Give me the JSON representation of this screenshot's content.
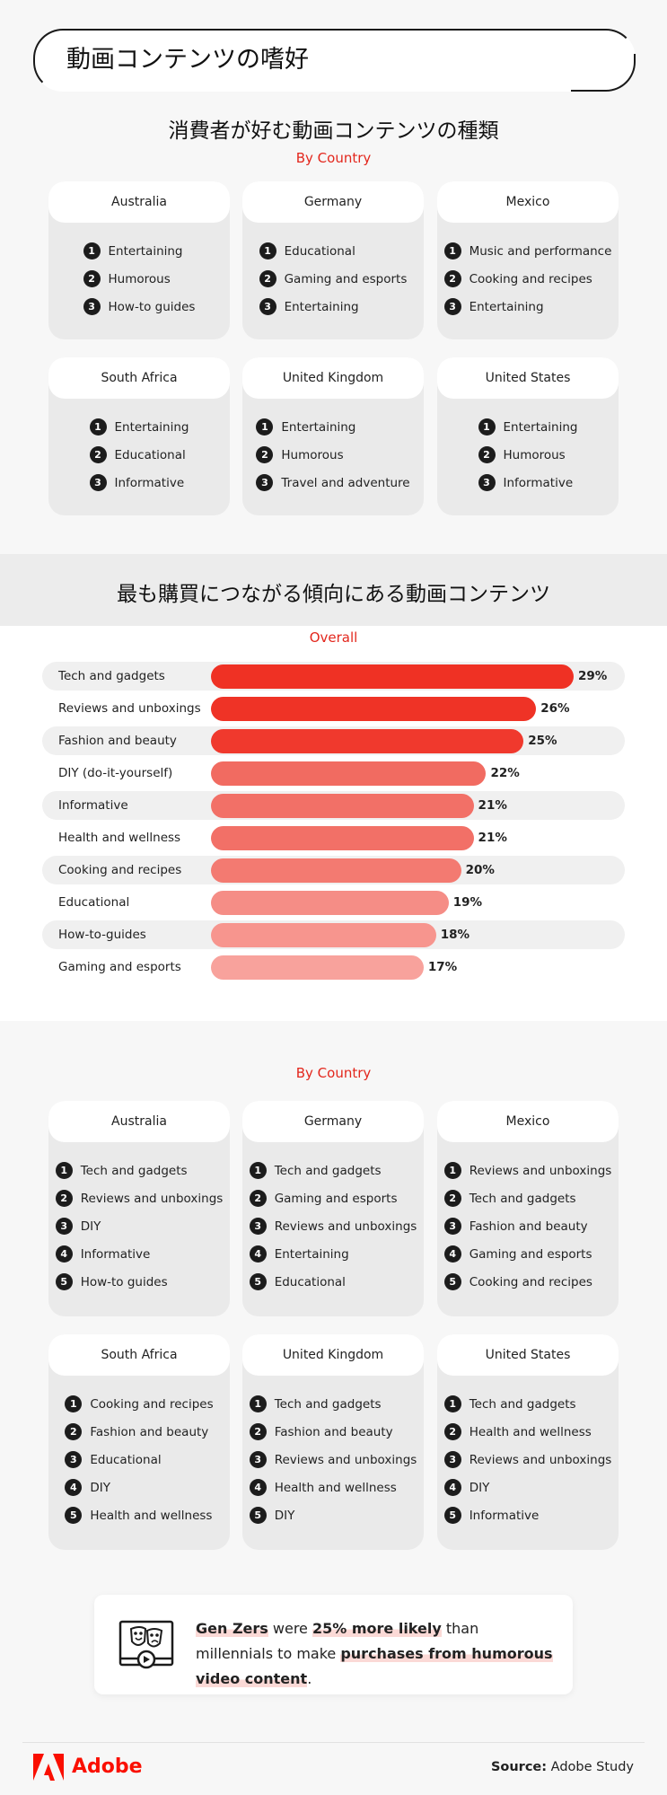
{
  "page_title": "動画コンテンツの嗜好",
  "section1": {
    "title": "消費者が好む動画コンテンツの種類",
    "subtitle": "By Country",
    "countries": [
      {
        "name": "Australia",
        "items": [
          "Entertaining",
          "Humorous",
          "How-to guides"
        ]
      },
      {
        "name": "Germany",
        "items": [
          "Educational",
          "Gaming and esports",
          "Entertaining"
        ]
      },
      {
        "name": "Mexico",
        "items": [
          "Music and performance",
          "Cooking and recipes",
          "Entertaining"
        ]
      },
      {
        "name": "South Africa",
        "items": [
          "Entertaining",
          "Educational",
          "Informative"
        ]
      },
      {
        "name": "United Kingdom",
        "items": [
          "Entertaining",
          "Humorous",
          "Travel and adventure"
        ]
      },
      {
        "name": "United States",
        "items": [
          "Entertaining",
          "Humorous",
          "Informative"
        ]
      }
    ]
  },
  "section2": {
    "title": "最も購買につながる傾向にある動画コンテンツ",
    "subtitle": "Overall"
  },
  "chart_data": {
    "type": "bar",
    "orientation": "horizontal",
    "title": "最も購買につながる傾向にある動画コンテンツ",
    "subtitle": "Overall",
    "categories": [
      "Tech and gadgets",
      "Reviews and unboxings",
      "Fashion and beauty",
      "DIY (do-it-yourself)",
      "Informative",
      "Health and wellness",
      "Cooking and recipes",
      "Educational",
      "How-to-guides",
      "Gaming and esports"
    ],
    "values": [
      29,
      26,
      25,
      22,
      21,
      21,
      20,
      19,
      18,
      17
    ],
    "value_labels": [
      "29%",
      "26%",
      "25%",
      "22%",
      "21%",
      "21%",
      "20%",
      "19%",
      "18%",
      "17%"
    ],
    "colors": [
      "#ef3124",
      "#ef3326",
      "#f0392d",
      "#f16b61",
      "#f27067",
      "#f27067",
      "#f37a71",
      "#f58d86",
      "#f7958e",
      "#f8a29c"
    ],
    "xlim": [
      0,
      29
    ]
  },
  "section3": {
    "subtitle": "By Country",
    "countries": [
      {
        "name": "Australia",
        "items": [
          "Tech and gadgets",
          "Reviews and unboxings",
          "DIY",
          "Informative",
          "How-to guides"
        ]
      },
      {
        "name": "Germany",
        "items": [
          "Tech and gadgets",
          "Gaming and esports",
          "Reviews and unboxings",
          "Entertaining",
          "Educational"
        ]
      },
      {
        "name": "Mexico",
        "items": [
          "Reviews and unboxings",
          "Tech and gadgets",
          "Fashion and beauty",
          "Gaming and esports",
          "Cooking and recipes"
        ]
      },
      {
        "name": "South Africa",
        "items": [
          "Cooking and recipes",
          "Fashion and beauty",
          "Educational",
          "DIY",
          "Health and wellness"
        ]
      },
      {
        "name": "United Kingdom",
        "items": [
          "Tech and gadgets",
          "Fashion and beauty",
          "Reviews and unboxings",
          "Health and wellness",
          "DIY"
        ]
      },
      {
        "name": "United States",
        "items": [
          "Tech and gadgets",
          "Health and wellness",
          "Reviews and unboxings",
          "DIY",
          "Informative"
        ]
      }
    ]
  },
  "callout": {
    "icon": "video-comedy-mask-icon",
    "parts": [
      "Gen Zers",
      " were ",
      "25% more likely",
      " than millennials to make ",
      "purchases from humorous video content",
      "."
    ]
  },
  "footer": {
    "brand": "Adobe",
    "source_label": "Source:",
    "source_value": "Adobe Study",
    "brand_color": "#fa0f00"
  }
}
